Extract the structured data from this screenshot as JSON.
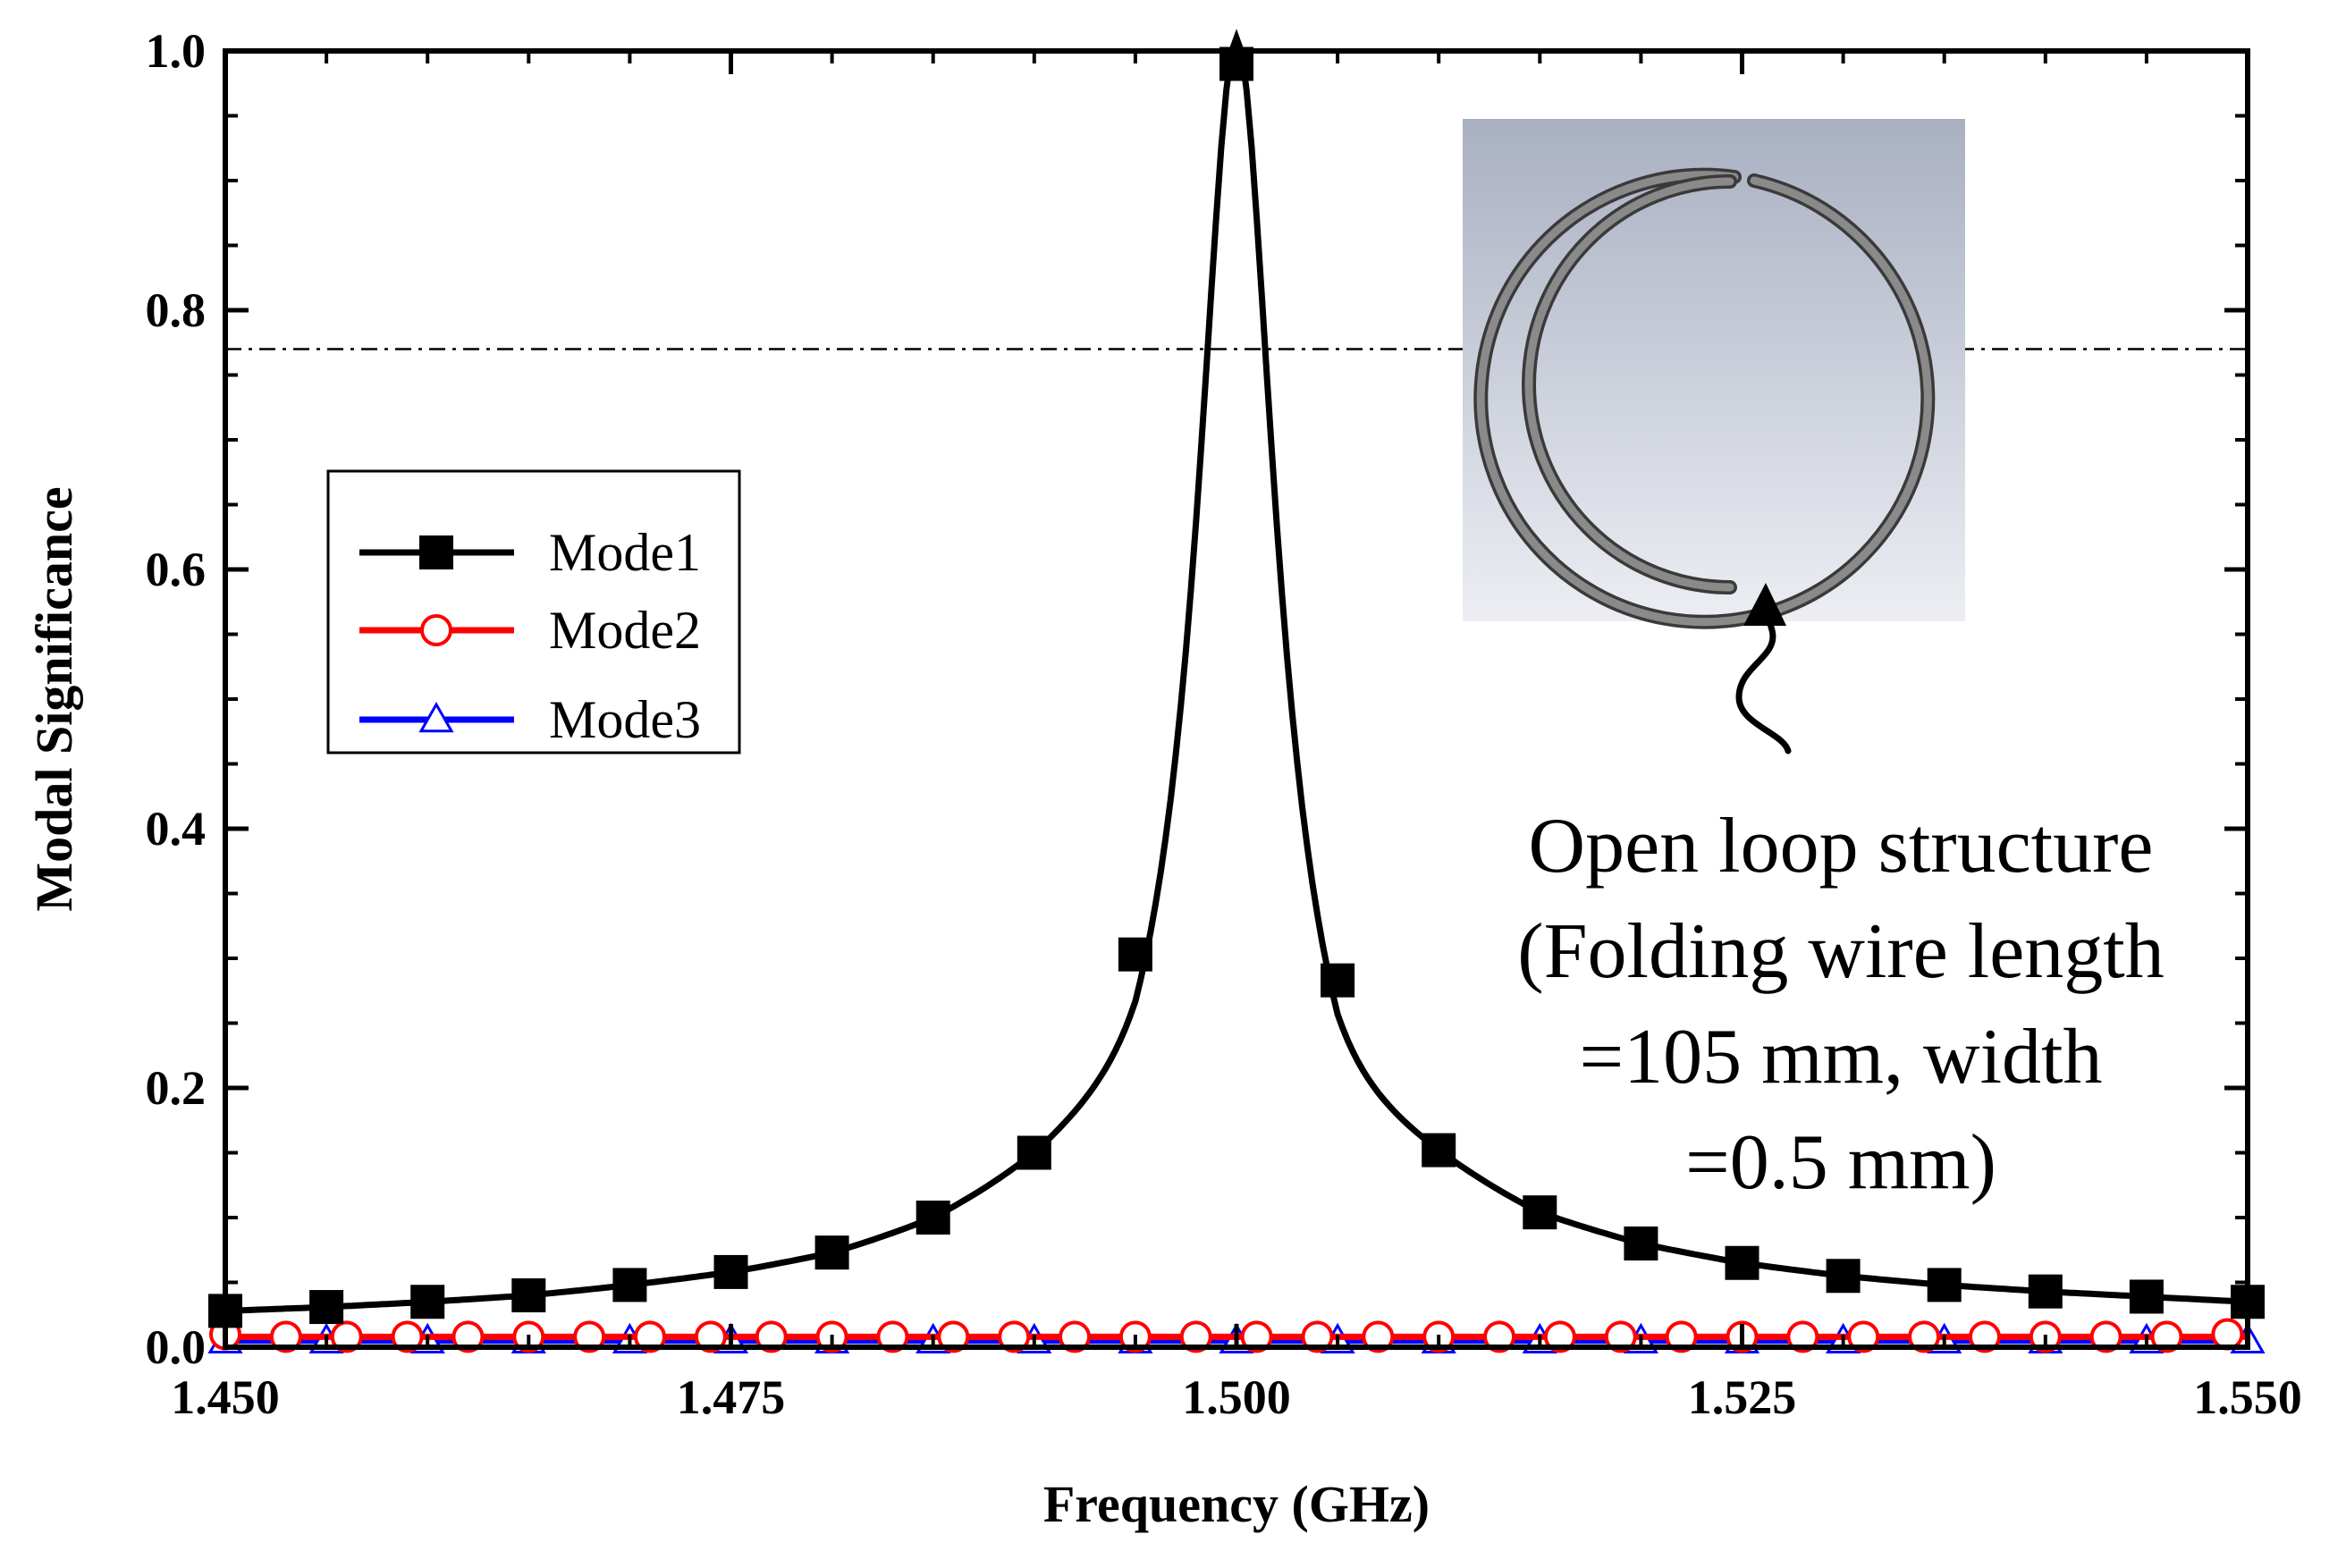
{
  "chart_data": {
    "type": "line",
    "title": "",
    "xlabel": "Frequency (GHz)",
    "ylabel": "Modal Significance",
    "xlim": [
      1.45,
      1.55
    ],
    "ylim": [
      0.0,
      1.0
    ],
    "x_ticks": [
      "1.450",
      "1.475",
      "1.500",
      "1.525",
      "1.550"
    ],
    "y_ticks": [
      "0.0",
      "0.2",
      "0.4",
      "0.6",
      "0.8",
      "1.0"
    ],
    "reference_line_y": 0.77,
    "grid": false,
    "legend_position": "left",
    "series": [
      {
        "name": "Mode1",
        "color": "#000000",
        "marker": "square",
        "x": [
          1.45,
          1.455,
          1.46,
          1.465,
          1.47,
          1.475,
          1.48,
          1.485,
          1.49,
          1.495,
          1.5,
          1.505,
          1.51,
          1.515,
          1.52,
          1.525,
          1.53,
          1.535,
          1.54,
          1.545,
          1.55
        ],
        "values": [
          0.028,
          0.031,
          0.035,
          0.04,
          0.048,
          0.058,
          0.073,
          0.1,
          0.15,
          0.303,
          0.99,
          0.283,
          0.152,
          0.104,
          0.08,
          0.065,
          0.055,
          0.048,
          0.043,
          0.039,
          0.035
        ]
      },
      {
        "name": "Mode2",
        "color": "#ff0000",
        "marker": "circle",
        "x": [
          1.45,
          1.453,
          1.456,
          1.459,
          1.462,
          1.465,
          1.468,
          1.471,
          1.474,
          1.477,
          1.48,
          1.483,
          1.486,
          1.489,
          1.492,
          1.495,
          1.498,
          1.501,
          1.504,
          1.507,
          1.51,
          1.513,
          1.516,
          1.519,
          1.522,
          1.525,
          1.528,
          1.531,
          1.534,
          1.537,
          1.54,
          1.543,
          1.546,
          1.549
        ],
        "values": [
          0.01,
          0.008,
          0.008,
          0.008,
          0.008,
          0.008,
          0.008,
          0.008,
          0.008,
          0.008,
          0.008,
          0.008,
          0.008,
          0.008,
          0.008,
          0.008,
          0.008,
          0.008,
          0.008,
          0.008,
          0.008,
          0.008,
          0.008,
          0.008,
          0.008,
          0.008,
          0.008,
          0.008,
          0.008,
          0.008,
          0.008,
          0.008,
          0.008,
          0.01
        ]
      },
      {
        "name": "Mode3",
        "color": "#0000ff",
        "marker": "triangle",
        "x": [
          1.45,
          1.455,
          1.46,
          1.465,
          1.47,
          1.475,
          1.48,
          1.485,
          1.49,
          1.495,
          1.5,
          1.505,
          1.51,
          1.515,
          1.52,
          1.525,
          1.53,
          1.535,
          1.54,
          1.545,
          1.55
        ],
        "values": [
          0.005,
          0.005,
          0.005,
          0.005,
          0.005,
          0.005,
          0.005,
          0.005,
          0.005,
          0.005,
          0.005,
          0.005,
          0.005,
          0.005,
          0.005,
          0.005,
          0.005,
          0.005,
          0.005,
          0.005,
          0.005
        ]
      }
    ],
    "annotation": {
      "lines": [
        "Open loop structure",
        "(Folding wire length",
        "=105 mm, width",
        "=0.5 mm)"
      ]
    }
  }
}
